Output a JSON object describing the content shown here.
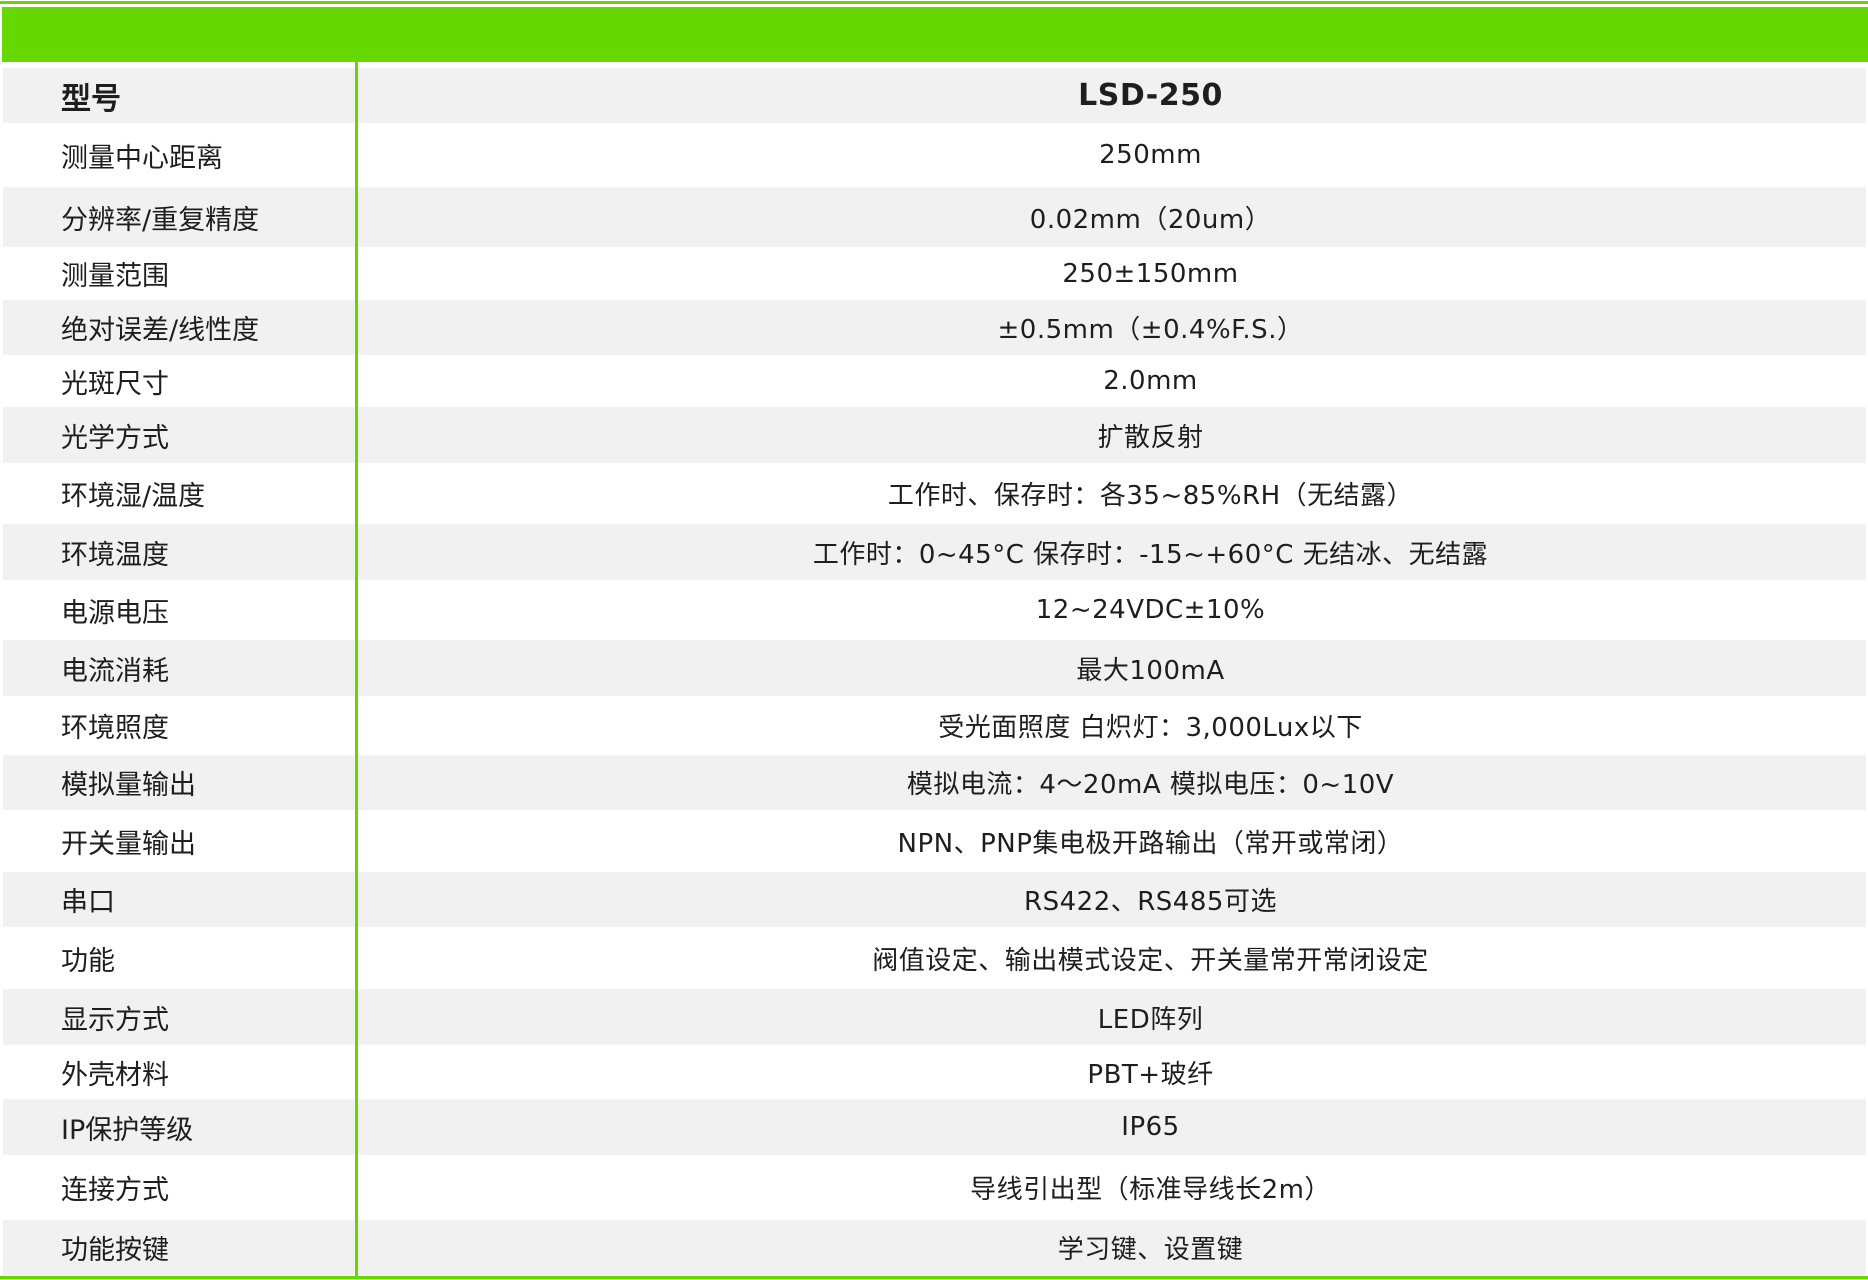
{
  "header": {
    "label": "型号",
    "value": "LSD-250"
  },
  "rows": [
    {
      "label": "测量中心距离",
      "value": "250mm"
    },
    {
      "label": "分辨率/重复精度",
      "value": "0.02mm（20um）"
    },
    {
      "label": "测量范围",
      "value": "250±150mm"
    },
    {
      "label": "绝对误差/线性度",
      "value": "±0.5mm（±0.4%F.S.）"
    },
    {
      "label": "光斑尺寸",
      "value": "2.0mm"
    },
    {
      "label": "光学方式",
      "value": "扩散反射"
    },
    {
      "label": "环境湿/温度",
      "value": "工作时、保存时：各35~85%RH（无结露）"
    },
    {
      "label": "环境温度",
      "value": "工作时：0~45°C   保存时：-15~+60°C 无结冰、无结露"
    },
    {
      "label": "电源电压",
      "value": "12~24VDC±10%"
    },
    {
      "label": "电流消耗",
      "value": "最大100mA"
    },
    {
      "label": "环境照度",
      "value": "受光面照度   白炽灯：3,000Lux以下"
    },
    {
      "label": "模拟量输出",
      "value": "模拟电流：4～20mA   模拟电压：0~10V"
    },
    {
      "label": "开关量输出",
      "value": "NPN、PNP集电极开路输出（常开或常闭）"
    },
    {
      "label": "串口",
      "value": "RS422、RS485可选"
    },
    {
      "label": "功能",
      "value": "阀值设定、输出模式设定、开关量常开常闭设定"
    },
    {
      "label": "显示方式",
      "value": "LED阵列"
    },
    {
      "label": "外壳材料",
      "value": "PBT+玻纤"
    },
    {
      "label": "IP保护等级",
      "value": "IP65"
    },
    {
      "label": "连接方式",
      "value": "导线引出型（标准导线长2m）"
    },
    {
      "label": "功能按键",
      "value": "学习键、设置键"
    }
  ],
  "colors": {
    "accent": "#66d800",
    "row_alt": "#f1f1f1"
  }
}
